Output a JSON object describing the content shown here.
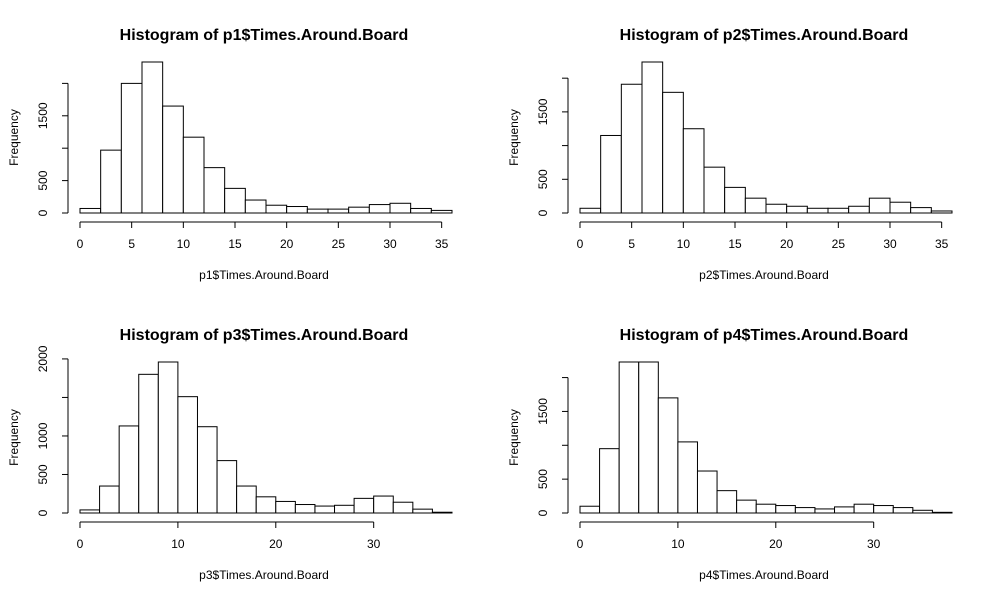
{
  "chart_data": [
    {
      "type": "bar",
      "title": "Histogram of p1$Times.Around.Board",
      "xlabel": "p1$Times.Around.Board",
      "ylabel": "Frequency",
      "bin_width": 2,
      "bins": [
        0,
        2,
        4,
        6,
        8,
        10,
        12,
        14,
        16,
        18,
        20,
        22,
        24,
        26,
        28,
        30,
        32,
        34
      ],
      "values": [
        70,
        970,
        2000,
        2330,
        1650,
        1170,
        700,
        380,
        200,
        120,
        100,
        60,
        60,
        90,
        130,
        150,
        70,
        40
      ],
      "xlim": [
        0,
        36
      ],
      "ylim": [
        0,
        2330
      ],
      "x_ticks": [
        0,
        5,
        10,
        15,
        20,
        25,
        30,
        35
      ],
      "y_ticks": [
        0,
        500,
        1500
      ],
      "y_axis_max": 2000
    },
    {
      "type": "bar",
      "title": "Histogram of p2$Times.Around.Board",
      "xlabel": "p2$Times.Around.Board",
      "ylabel": "Frequency",
      "bin_width": 2,
      "bins": [
        0,
        2,
        4,
        6,
        8,
        10,
        12,
        14,
        16,
        18,
        20,
        22,
        24,
        26,
        28,
        30,
        32,
        34
      ],
      "values": [
        70,
        1150,
        1910,
        2240,
        1790,
        1250,
        680,
        380,
        220,
        130,
        100,
        70,
        70,
        100,
        220,
        160,
        80,
        30
      ],
      "xlim": [
        0,
        36
      ],
      "ylim": [
        0,
        2240
      ],
      "x_ticks": [
        0,
        5,
        10,
        15,
        20,
        25,
        30,
        35
      ],
      "y_ticks": [
        0,
        500,
        1500
      ],
      "y_axis_max": 2000
    },
    {
      "type": "bar",
      "title": "Histogram of p3$Times.Around.Board",
      "xlabel": "p3$Times.Around.Board",
      "ylabel": "Frequency",
      "bin_width": 2,
      "bins": [
        0,
        2,
        4,
        6,
        8,
        10,
        12,
        14,
        16,
        18,
        20,
        22,
        24,
        26,
        28,
        30,
        32,
        34,
        36
      ],
      "values": [
        40,
        350,
        1130,
        1800,
        1960,
        1510,
        1120,
        680,
        350,
        210,
        150,
        110,
        90,
        100,
        190,
        220,
        140,
        50,
        10
      ],
      "xlim": [
        0,
        38
      ],
      "ylim": [
        0,
        1960
      ],
      "x_ticks": [
        0,
        10,
        20,
        30
      ],
      "y_ticks": [
        0,
        500,
        1000,
        2000
      ],
      "y_axis_max": 2000
    },
    {
      "type": "bar",
      "title": "Histogram of p4$Times.Around.Board",
      "xlabel": "p4$Times.Around.Board",
      "ylabel": "Frequency",
      "bin_width": 2,
      "bins": [
        0,
        2,
        4,
        6,
        8,
        10,
        12,
        14,
        16,
        18,
        20,
        22,
        24,
        26,
        28,
        30,
        32,
        34,
        36
      ],
      "values": [
        100,
        950,
        2230,
        2230,
        1700,
        1050,
        620,
        330,
        190,
        130,
        110,
        80,
        60,
        90,
        130,
        110,
        80,
        40,
        10
      ],
      "xlim": [
        0,
        38
      ],
      "ylim": [
        0,
        2230
      ],
      "x_ticks": [
        0,
        10,
        20,
        30
      ],
      "y_ticks": [
        0,
        500,
        1500
      ],
      "y_axis_max": 2000
    }
  ]
}
